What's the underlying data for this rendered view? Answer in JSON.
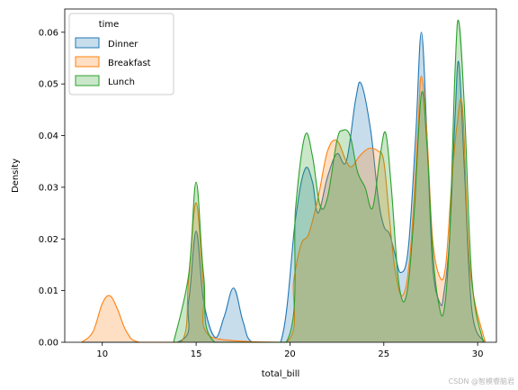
{
  "chart_data": {
    "type": "area",
    "xlabel": "total_bill",
    "ylabel": "Density",
    "xlim": [
      8,
      31
    ],
    "ylim": [
      0,
      0.0645
    ],
    "x_ticks": [
      10,
      15,
      20,
      25,
      30
    ],
    "y_ticks": [
      0.0,
      0.01,
      0.02,
      0.03,
      0.04,
      0.05,
      0.06
    ],
    "y_tick_labels": [
      "0.00",
      "0.01",
      "0.02",
      "0.03",
      "0.04",
      "0.05",
      "0.06"
    ],
    "grid": false,
    "legend": {
      "title": "time",
      "placement": "top-left",
      "entries": [
        "Dinner",
        "Breakfast",
        "Lunch"
      ]
    },
    "series": [
      {
        "name": "Dinner",
        "color": "#1f77b4",
        "x": [
          8.9,
          14.0,
          14.6,
          15.0,
          15.4,
          16.0,
          16.5,
          17.0,
          17.5,
          18.0,
          19.5,
          20.3,
          20.8,
          21.2,
          21.5,
          22.0,
          22.5,
          23.0,
          23.5,
          23.8,
          24.3,
          24.7,
          25.0,
          25.3,
          25.6,
          25.9,
          26.3,
          26.7,
          27.0,
          27.3,
          27.6,
          28.0,
          28.2,
          28.5,
          28.8,
          29.0,
          29.3,
          29.7,
          30.4
        ],
        "y": [
          0.0,
          0.0,
          0.008,
          0.0215,
          0.008,
          0.001,
          0.005,
          0.0105,
          0.004,
          0.0,
          0.0,
          0.024,
          0.0335,
          0.031,
          0.025,
          0.032,
          0.0365,
          0.035,
          0.047,
          0.05,
          0.041,
          0.028,
          0.0225,
          0.021,
          0.017,
          0.0135,
          0.018,
          0.04,
          0.06,
          0.04,
          0.015,
          0.0075,
          0.0095,
          0.02,
          0.044,
          0.054,
          0.033,
          0.006,
          0.0
        ]
      },
      {
        "name": "Breakfast",
        "color": "#ff7f0e",
        "x": [
          8.9,
          9.5,
          10.0,
          10.4,
          10.8,
          11.3,
          12.0,
          14.2,
          14.6,
          15.0,
          15.4,
          15.8,
          19.8,
          20.2,
          20.6,
          21.0,
          21.5,
          22.0,
          22.5,
          23.0,
          23.3,
          23.7,
          24.2,
          24.7,
          25.0,
          25.3,
          25.6,
          26.0,
          26.4,
          26.8,
          27.0,
          27.3,
          27.6,
          28.0,
          28.3,
          28.6,
          28.9,
          29.2,
          29.6,
          30.4
        ],
        "y": [
          0.0,
          0.002,
          0.0075,
          0.009,
          0.0065,
          0.002,
          0.0,
          0.0,
          0.012,
          0.027,
          0.011,
          0.001,
          0.0,
          0.012,
          0.019,
          0.021,
          0.028,
          0.037,
          0.039,
          0.035,
          0.034,
          0.036,
          0.0375,
          0.037,
          0.035,
          0.024,
          0.014,
          0.009,
          0.017,
          0.04,
          0.0515,
          0.04,
          0.02,
          0.0125,
          0.015,
          0.03,
          0.042,
          0.045,
          0.014,
          0.0
        ]
      },
      {
        "name": "Lunch",
        "color": "#2ca02c",
        "x": [
          13.8,
          14.6,
          15.0,
          15.4,
          16.0,
          19.8,
          20.3,
          20.8,
          21.2,
          21.6,
          22.0,
          22.5,
          22.8,
          23.2,
          23.6,
          24.0,
          24.4,
          24.8,
          25.1,
          25.4,
          25.8,
          26.2,
          26.6,
          27.0,
          27.3,
          27.6,
          27.9,
          28.2,
          28.5,
          28.8,
          29.0,
          29.3,
          29.7,
          30.3
        ],
        "y": [
          0.0,
          0.013,
          0.031,
          0.013,
          0.0,
          0.0,
          0.026,
          0.04,
          0.036,
          0.0265,
          0.028,
          0.039,
          0.041,
          0.04,
          0.033,
          0.03,
          0.026,
          0.036,
          0.0405,
          0.03,
          0.0115,
          0.009,
          0.024,
          0.048,
          0.038,
          0.018,
          0.008,
          0.006,
          0.02,
          0.053,
          0.062,
          0.045,
          0.012,
          0.0
        ]
      }
    ]
  },
  "watermark": "CSDN @智模睿脑君"
}
